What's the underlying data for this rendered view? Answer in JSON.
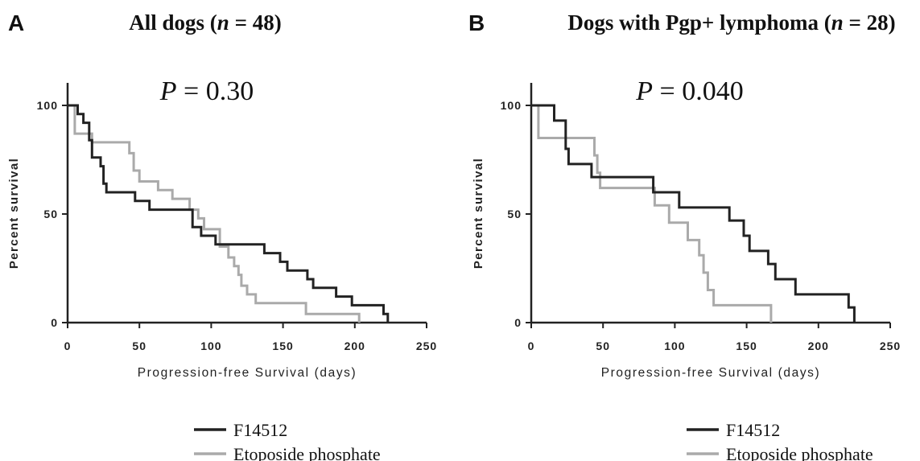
{
  "chart_data": [
    {
      "type": "line",
      "subtype": "kaplan-meier step",
      "panel_label": "A",
      "title_main": "All dogs (",
      "title_n": "n",
      "title_rest": " = 48)",
      "annotation_p": "P",
      "annotation_rest": " = 0.30",
      "xlabel": "Progression-free Survival (days)",
      "ylabel": "Percent survival",
      "xlim": [
        0,
        250
      ],
      "ylim": [
        0,
        100
      ],
      "x_ticks": [
        "0",
        "50",
        "100",
        "150",
        "200",
        "250"
      ],
      "y_ticks": [
        "0",
        "50",
        "100"
      ],
      "legend_position": "bottom",
      "series": [
        {
          "name": "F14512",
          "color": "#222222",
          "points": [
            [
              0,
              100
            ],
            [
              7,
              100
            ],
            [
              7,
              96
            ],
            [
              11,
              96
            ],
            [
              11,
              92
            ],
            [
              15,
              92
            ],
            [
              15,
              84
            ],
            [
              17,
              84
            ],
            [
              17,
              76
            ],
            [
              23,
              76
            ],
            [
              23,
              72
            ],
            [
              25,
              72
            ],
            [
              25,
              64
            ],
            [
              27,
              64
            ],
            [
              27,
              60
            ],
            [
              47,
              60
            ],
            [
              47,
              56
            ],
            [
              57,
              56
            ],
            [
              57,
              52
            ],
            [
              87,
              52
            ],
            [
              87,
              44
            ],
            [
              93,
              44
            ],
            [
              93,
              40
            ],
            [
              103,
              40
            ],
            [
              103,
              36
            ],
            [
              137,
              36
            ],
            [
              137,
              32
            ],
            [
              148,
              32
            ],
            [
              148,
              28
            ],
            [
              153,
              28
            ],
            [
              153,
              24
            ],
            [
              167,
              24
            ],
            [
              167,
              20
            ],
            [
              171,
              20
            ],
            [
              171,
              16
            ],
            [
              187,
              16
            ],
            [
              187,
              12
            ],
            [
              198,
              12
            ],
            [
              198,
              8
            ],
            [
              220,
              8
            ],
            [
              220,
              4
            ],
            [
              223,
              4
            ],
            [
              223,
              0
            ]
          ]
        },
        {
          "name": "Etoposide phosphate",
          "color": "#aaaaaa",
          "points": [
            [
              0,
              100
            ],
            [
              5,
              100
            ],
            [
              5,
              87
            ],
            [
              17,
              87
            ],
            [
              17,
              83
            ],
            [
              43,
              83
            ],
            [
              43,
              78
            ],
            [
              46,
              78
            ],
            [
              46,
              70
            ],
            [
              50,
              70
            ],
            [
              50,
              65
            ],
            [
              63,
              65
            ],
            [
              63,
              61
            ],
            [
              73,
              61
            ],
            [
              73,
              57
            ],
            [
              85,
              57
            ],
            [
              85,
              52
            ],
            [
              91,
              52
            ],
            [
              91,
              48
            ],
            [
              95,
              48
            ],
            [
              95,
              43
            ],
            [
              106,
              43
            ],
            [
              106,
              35
            ],
            [
              112,
              35
            ],
            [
              112,
              30
            ],
            [
              116,
              30
            ],
            [
              116,
              26
            ],
            [
              119,
              26
            ],
            [
              119,
              22
            ],
            [
              121,
              22
            ],
            [
              121,
              17
            ],
            [
              125,
              17
            ],
            [
              125,
              13
            ],
            [
              131,
              13
            ],
            [
              131,
              9
            ],
            [
              166,
              9
            ],
            [
              166,
              4
            ],
            [
              203,
              4
            ],
            [
              203,
              0
            ]
          ]
        }
      ]
    },
    {
      "type": "line",
      "subtype": "kaplan-meier step",
      "panel_label": "B",
      "title_main": "Dogs with Pgp+ lymphoma (",
      "title_n": "n",
      "title_rest": " = 28)",
      "annotation_p": "P",
      "annotation_rest": " = 0.040",
      "xlabel": "Progression-free Survival (days)",
      "ylabel": "Percent survival",
      "xlim": [
        0,
        250
      ],
      "ylim": [
        0,
        100
      ],
      "x_ticks": [
        "0",
        "50",
        "100",
        "150",
        "200",
        "250"
      ],
      "y_ticks": [
        "0",
        "50",
        "100"
      ],
      "legend_position": "bottom",
      "series": [
        {
          "name": "F14512",
          "color": "#222222",
          "points": [
            [
              0,
              100
            ],
            [
              16,
              100
            ],
            [
              16,
              93
            ],
            [
              24,
              93
            ],
            [
              24,
              80
            ],
            [
              26,
              80
            ],
            [
              26,
              73
            ],
            [
              42,
              73
            ],
            [
              42,
              67
            ],
            [
              85,
              67
            ],
            [
              85,
              60
            ],
            [
              103,
              60
            ],
            [
              103,
              53
            ],
            [
              138,
              53
            ],
            [
              138,
              47
            ],
            [
              148,
              47
            ],
            [
              148,
              40
            ],
            [
              152,
              40
            ],
            [
              152,
              33
            ],
            [
              165,
              33
            ],
            [
              165,
              27
            ],
            [
              170,
              27
            ],
            [
              170,
              20
            ],
            [
              184,
              20
            ],
            [
              184,
              13
            ],
            [
              221,
              13
            ],
            [
              221,
              7
            ],
            [
              225,
              7
            ],
            [
              225,
              0
            ]
          ]
        },
        {
          "name": "Etoposide phosphate",
          "color": "#aaaaaa",
          "points": [
            [
              0,
              100
            ],
            [
              5,
              100
            ],
            [
              5,
              85
            ],
            [
              44,
              85
            ],
            [
              44,
              77
            ],
            [
              46,
              77
            ],
            [
              46,
              69
            ],
            [
              48,
              69
            ],
            [
              48,
              62
            ],
            [
              86,
              62
            ],
            [
              86,
              54
            ],
            [
              96,
              54
            ],
            [
              96,
              46
            ],
            [
              109,
              46
            ],
            [
              109,
              38
            ],
            [
              117,
              38
            ],
            [
              117,
              31
            ],
            [
              120,
              31
            ],
            [
              120,
              23
            ],
            [
              123,
              23
            ],
            [
              123,
              15
            ],
            [
              127,
              15
            ],
            [
              127,
              8
            ],
            [
              167,
              8
            ],
            [
              167,
              0
            ]
          ]
        }
      ]
    }
  ]
}
